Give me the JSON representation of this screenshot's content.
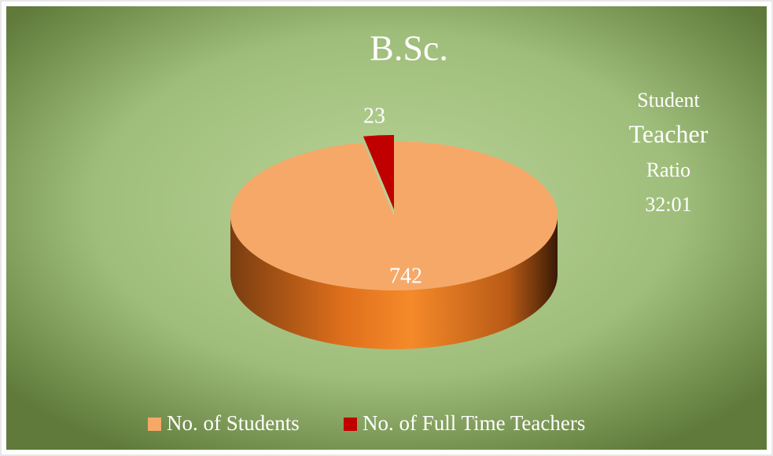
{
  "chart_data": {
    "type": "pie3d",
    "title": "B.Sc.",
    "categories": [
      "No. of Students",
      "No. of Full Time Teachers"
    ],
    "values": [
      742,
      23
    ],
    "colors": [
      "#f6a868",
      "#c00000"
    ],
    "legend": "bottom",
    "annotation": [
      "Student",
      "Teacher",
      "Ratio",
      "32:01"
    ]
  }
}
